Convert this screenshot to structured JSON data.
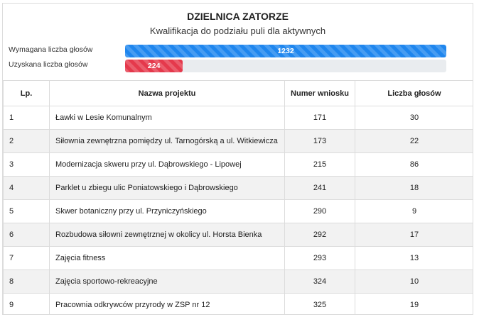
{
  "header": {
    "title": "DZIELNICA ZATORZE",
    "subtitle": "Kwalifikacja do podziału puli dla aktywnych"
  },
  "progress": {
    "required": {
      "label": "Wymagana liczba głosów",
      "value": "1232",
      "fill_fraction": 1.0,
      "color": "#1f86ee"
    },
    "obtained": {
      "label": "Uzyskana liczba głosów",
      "value": "224",
      "fill_fraction": 0.18,
      "color": "#e5394c"
    }
  },
  "table": {
    "headers": [
      "Lp.",
      "Nazwa projektu",
      "Numer wniosku",
      "Liczba głosów"
    ],
    "rows": [
      {
        "lp": "1",
        "name": "Ławki w Lesie Komunalnym",
        "number": "171",
        "votes": "30"
      },
      {
        "lp": "2",
        "name": "Siłownia zewnętrzna pomiędzy ul. Tarnogórską a ul. Witkiewicza",
        "number": "173",
        "votes": "22"
      },
      {
        "lp": "3",
        "name": "Modernizacja skweru przy ul. Dąbrowskiego - Lipowej",
        "number": "215",
        "votes": "86"
      },
      {
        "lp": "4",
        "name": "Parklet u zbiegu ulic Poniatowskiego i Dąbrowskiego",
        "number": "241",
        "votes": "18"
      },
      {
        "lp": "5",
        "name": "Skwer botaniczny przy ul. Przyniczyńskiego",
        "number": "290",
        "votes": "9"
      },
      {
        "lp": "6",
        "name": "Rozbudowa siłowni zewnętrznej w okolicy ul. Horsta Bienka",
        "number": "292",
        "votes": "17"
      },
      {
        "lp": "7",
        "name": "Zajęcia fitness",
        "number": "293",
        "votes": "13"
      },
      {
        "lp": "8",
        "name": "Zajęcia sportowo-rekreacyjne",
        "number": "324",
        "votes": "10"
      },
      {
        "lp": "9",
        "name": "Pracownia odkrywców przyrody w ZSP nr 12",
        "number": "325",
        "votes": "19"
      }
    ]
  }
}
